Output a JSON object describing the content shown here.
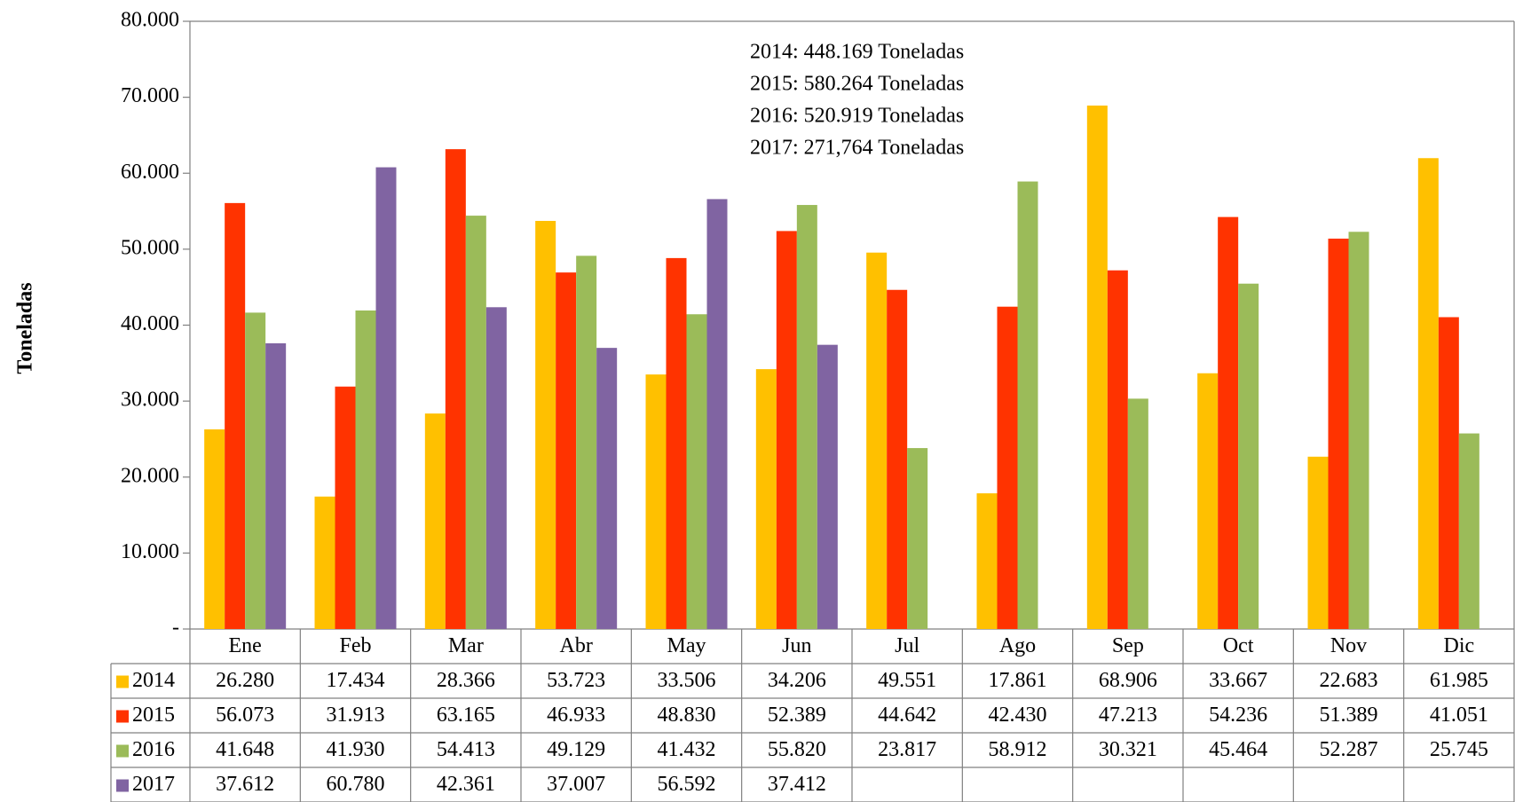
{
  "chart_data": {
    "type": "bar",
    "y_label": "Toneladas",
    "annotations": [
      "2014: 448.169 Toneladas",
      "2015: 580.264 Toneladas",
      "2016: 520.919 Toneladas",
      "2017: 271,764 Toneladas"
    ],
    "categories": [
      "Ene",
      "Feb",
      "Mar",
      "Abr",
      "May",
      "Jun",
      "Jul",
      "Ago",
      "Sep",
      "Oct",
      "Nov",
      "Dic"
    ],
    "series": [
      {
        "name": "2014",
        "color": "#FFC000",
        "values": [
          26280,
          17434,
          28366,
          53723,
          33506,
          34206,
          49551,
          17861,
          68906,
          33667,
          22683,
          61985
        ],
        "value_labels": [
          "26.280",
          "17.434",
          "28.366",
          "53.723",
          "33.506",
          "34.206",
          "49.551",
          "17.861",
          "68.906",
          "33.667",
          "22.683",
          "61.985"
        ]
      },
      {
        "name": "2015",
        "color": "#FF3300",
        "values": [
          56073,
          31913,
          63165,
          46933,
          48830,
          52389,
          44642,
          42430,
          47213,
          54236,
          51389,
          41051
        ],
        "value_labels": [
          "56.073",
          "31.913",
          "63.165",
          "46.933",
          "48.830",
          "52.389",
          "44.642",
          "42.430",
          "47.213",
          "54.236",
          "51.389",
          "41.051"
        ]
      },
      {
        "name": "2016",
        "color": "#9BBB59",
        "values": [
          41648,
          41930,
          54413,
          49129,
          41432,
          55820,
          23817,
          58912,
          30321,
          45464,
          52287,
          25745
        ],
        "value_labels": [
          "41.648",
          "41.930",
          "54.413",
          "49.129",
          "41.432",
          "55.820",
          "23.817",
          "58.912",
          "30.321",
          "45.464",
          "52.287",
          "25.745"
        ]
      },
      {
        "name": "2017",
        "color": "#8064A2",
        "values": [
          37612,
          60780,
          42361,
          37007,
          56592,
          37412,
          null,
          null,
          null,
          null,
          null,
          null
        ],
        "value_labels": [
          "37.612",
          "60.780",
          "42.361",
          "37.007",
          "56.592",
          "37.412",
          null,
          null,
          null,
          null,
          null,
          null
        ]
      }
    ],
    "ylim": [
      0,
      80000
    ],
    "yticks": [
      {
        "value": 0,
        "label": "-"
      },
      {
        "value": 10000,
        "label": "10.000"
      },
      {
        "value": 20000,
        "label": "20.000"
      },
      {
        "value": 30000,
        "label": "30.000"
      },
      {
        "value": 40000,
        "label": "40.000"
      },
      {
        "value": 50000,
        "label": "50.000"
      },
      {
        "value": 60000,
        "label": "60.000"
      },
      {
        "value": 70000,
        "label": "70.000"
      },
      {
        "value": 80000,
        "label": "80.000"
      }
    ],
    "grid": false
  }
}
